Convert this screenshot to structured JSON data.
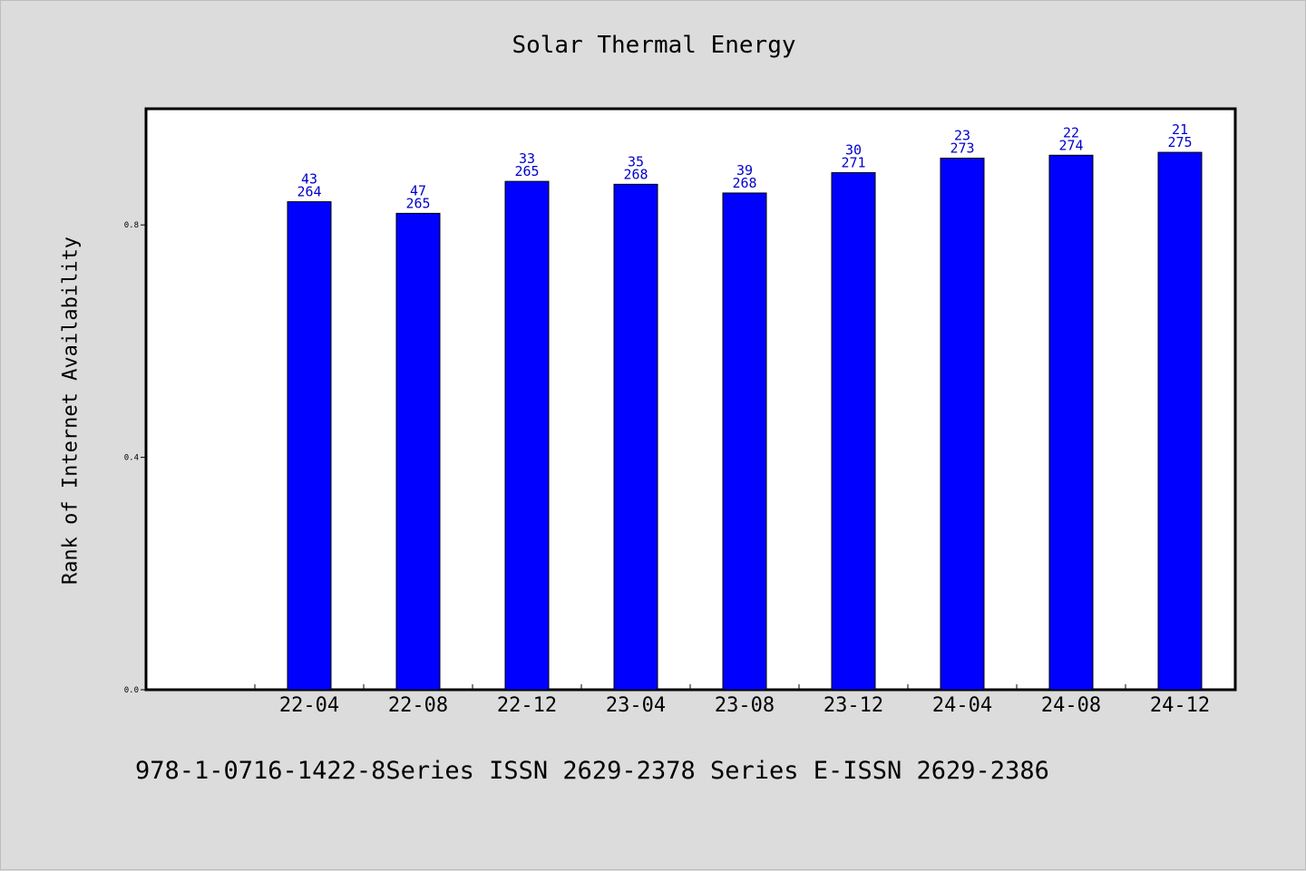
{
  "chart_data": {
    "type": "bar",
    "title": "Solar Thermal Energy",
    "xlabel": "",
    "ylabel": "Rank of Internet Availability",
    "categories": [
      "22-04",
      "22-08",
      "22-12",
      "23-04",
      "23-08",
      "23-12",
      "24-04",
      "24-08",
      "24-12"
    ],
    "values": [
      0.84,
      0.82,
      0.875,
      0.87,
      0.855,
      0.89,
      0.915,
      0.92,
      0.925
    ],
    "top_labels": [
      "43",
      "47",
      "33",
      "35",
      "39",
      "30",
      "23",
      "22",
      "21"
    ],
    "bottom_labels": [
      "264",
      "265",
      "265",
      "268",
      "268",
      "271",
      "273",
      "274",
      "275"
    ],
    "yticks": [
      0.0,
      0.4,
      0.8
    ],
    "ytick_labels": [
      "0.0",
      "0.4",
      "0.8"
    ],
    "ylim": [
      0.0,
      1.0
    ],
    "grid": false,
    "bar_color": "#0000ff",
    "label_color": "#0000cc"
  },
  "footer": "978-1-0716-1422-8Series ISSN 2629-2378 Series E-ISSN 2629-2386"
}
